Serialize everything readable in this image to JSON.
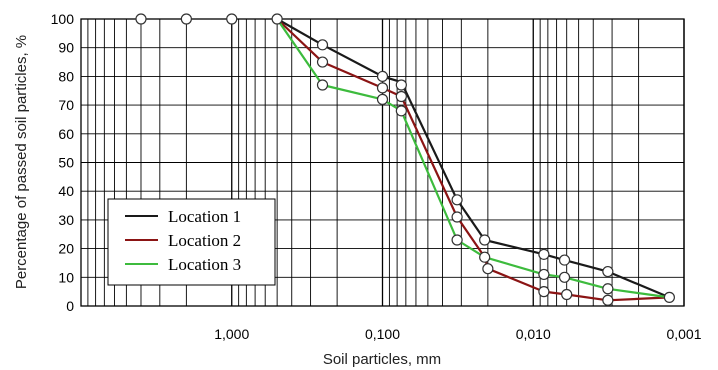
{
  "chart_data": {
    "type": "line",
    "title": "",
    "xlabel": "Soil particles, mm",
    "ylabel": "Percentage of passed soil particles, %",
    "x_scale": "log-reversed",
    "xlim": [
      10,
      0.001
    ],
    "ylim": [
      0,
      100
    ],
    "x_ticks": [
      {
        "value": 1,
        "label": "1,000"
      },
      {
        "value": 0.1,
        "label": "0,100"
      },
      {
        "value": 0.01,
        "label": "0,010"
      },
      {
        "value": 0.001,
        "label": "0,001"
      }
    ],
    "y_ticks": [
      0,
      10,
      20,
      30,
      40,
      50,
      60,
      70,
      80,
      90,
      100
    ],
    "grid": true,
    "legend_position": "bottom-left",
    "marker_points": [
      {
        "x": 4,
        "y": 100
      },
      {
        "x": 2,
        "y": 100
      },
      {
        "x": 1,
        "y": 100
      },
      {
        "x": 0.5,
        "y": 100
      },
      {
        "x": 0.25,
        "y": 91
      },
      {
        "x": 0.25,
        "y": 85
      },
      {
        "x": 0.25,
        "y": 77
      },
      {
        "x": 0.1,
        "y": 80
      },
      {
        "x": 0.1,
        "y": 76
      },
      {
        "x": 0.1,
        "y": 72
      },
      {
        "x": 0.075,
        "y": 77
      },
      {
        "x": 0.075,
        "y": 73
      },
      {
        "x": 0.075,
        "y": 68
      },
      {
        "x": 0.032,
        "y": 37
      },
      {
        "x": 0.032,
        "y": 31
      },
      {
        "x": 0.032,
        "y": 23
      },
      {
        "x": 0.021,
        "y": 23
      },
      {
        "x": 0.021,
        "y": 17
      },
      {
        "x": 0.02,
        "y": 13
      },
      {
        "x": 0.0085,
        "y": 18
      },
      {
        "x": 0.0085,
        "y": 11
      },
      {
        "x": 0.0085,
        "y": 5
      },
      {
        "x": 0.0062,
        "y": 16
      },
      {
        "x": 0.0062,
        "y": 10
      },
      {
        "x": 0.006,
        "y": 4
      },
      {
        "x": 0.0032,
        "y": 12
      },
      {
        "x": 0.0032,
        "y": 6
      },
      {
        "x": 0.0032,
        "y": 2
      },
      {
        "x": 0.00125,
        "y": 3
      }
    ],
    "series": [
      {
        "name": "Location 1",
        "color": "#1a1a1a",
        "points": [
          [
            0.5,
            100
          ],
          [
            0.25,
            91
          ],
          [
            0.1,
            80
          ],
          [
            0.075,
            78
          ],
          [
            0.032,
            37
          ],
          [
            0.021,
            23
          ],
          [
            0.0085,
            18
          ],
          [
            0.0062,
            16
          ],
          [
            0.0032,
            12
          ],
          [
            0.00125,
            3
          ]
        ]
      },
      {
        "name": "Location 2",
        "color": "#8b1414",
        "points": [
          [
            0.5,
            100
          ],
          [
            0.25,
            85
          ],
          [
            0.1,
            76
          ],
          [
            0.075,
            73
          ],
          [
            0.032,
            31
          ],
          [
            0.021,
            17
          ],
          [
            0.02,
            13
          ],
          [
            0.0085,
            5
          ],
          [
            0.006,
            4
          ],
          [
            0.0032,
            2
          ],
          [
            0.00125,
            3
          ]
        ]
      },
      {
        "name": "Location 3",
        "color": "#3dbb3d",
        "points": [
          [
            0.5,
            100
          ],
          [
            0.25,
            77
          ],
          [
            0.1,
            72
          ],
          [
            0.075,
            68
          ],
          [
            0.032,
            23
          ],
          [
            0.021,
            17
          ],
          [
            0.0085,
            11
          ],
          [
            0.0062,
            10
          ],
          [
            0.0032,
            6
          ],
          [
            0.00125,
            3
          ]
        ]
      }
    ]
  }
}
